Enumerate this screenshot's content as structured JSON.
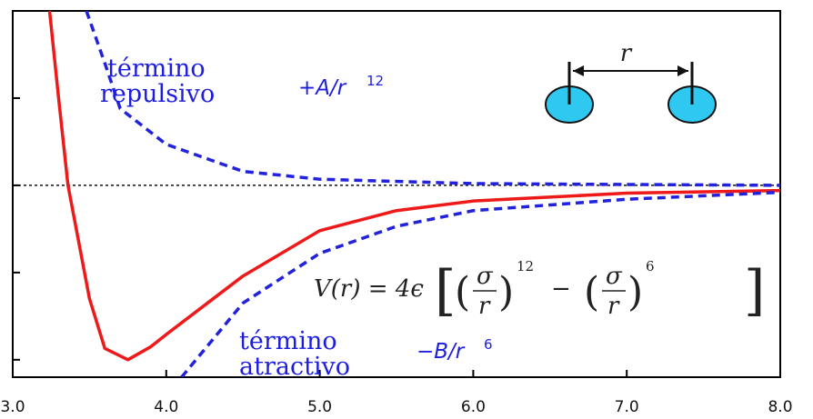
{
  "chart_data": {
    "type": "line",
    "xlim": [
      3,
      8
    ],
    "xticks": [
      {
        "value": 3,
        "label": "3.0"
      },
      {
        "value": 4,
        "label": "4.0"
      },
      {
        "value": 5,
        "label": "5.0"
      },
      {
        "value": 6,
        "label": "6.0"
      },
      {
        "value": 7,
        "label": "7.0"
      },
      {
        "value": 8,
        "label": "8.0"
      }
    ],
    "ylim": [
      -2.2,
      2.0
    ],
    "yticks": [
      -2,
      -1,
      0,
      1
    ],
    "reference_line": 0,
    "series": [
      {
        "color": "#ee1a1a",
        "dashed": false,
        "x": [
          3.24,
          3.3,
          3.36,
          3.5,
          3.6,
          3.75,
          3.9,
          4.0,
          4.5,
          5.0,
          5.5,
          6.0,
          7.0,
          8.0
        ],
        "values": [
          2.0,
          0.98,
          0,
          -1.3,
          -1.87,
          -2.0,
          -1.85,
          -1.71,
          -1.04,
          -0.52,
          -0.29,
          -0.18,
          -0.09,
          -0.06
        ]
      },
      {
        "color": "#2222dd",
        "dashed": true,
        "x": [
          3.48,
          3.6,
          3.7,
          4.0,
          4.5,
          5.0,
          6.0,
          8.0
        ],
        "values": [
          2.0,
          1.4,
          0.88,
          0.47,
          0.16,
          0.07,
          0.02,
          0.0
        ]
      },
      {
        "color": "#2222dd",
        "dashed": true,
        "x": [
          4.1,
          4.5,
          5.0,
          5.5,
          6.0,
          7.0,
          8.0
        ],
        "values": [
          -2.2,
          -1.35,
          -0.78,
          -0.47,
          -0.29,
          -0.16,
          -0.08
        ]
      }
    ],
    "annotations": {
      "repulsive_label": [
        "término",
        "repulsivo"
      ],
      "repulsive_term": {
        "text": "+A/r",
        "exponent": "12"
      },
      "attractive_label": [
        "término",
        "atractivo"
      ],
      "attractive_term": {
        "text": "−B/r",
        "exponent": "6"
      },
      "formula": {
        "lhs": "V(r) = 4ϵ",
        "numerator": "σ",
        "denominator": "r",
        "exponent1": "12",
        "minus": "−",
        "exponent2": "6"
      },
      "diagram_label": "r"
    }
  }
}
